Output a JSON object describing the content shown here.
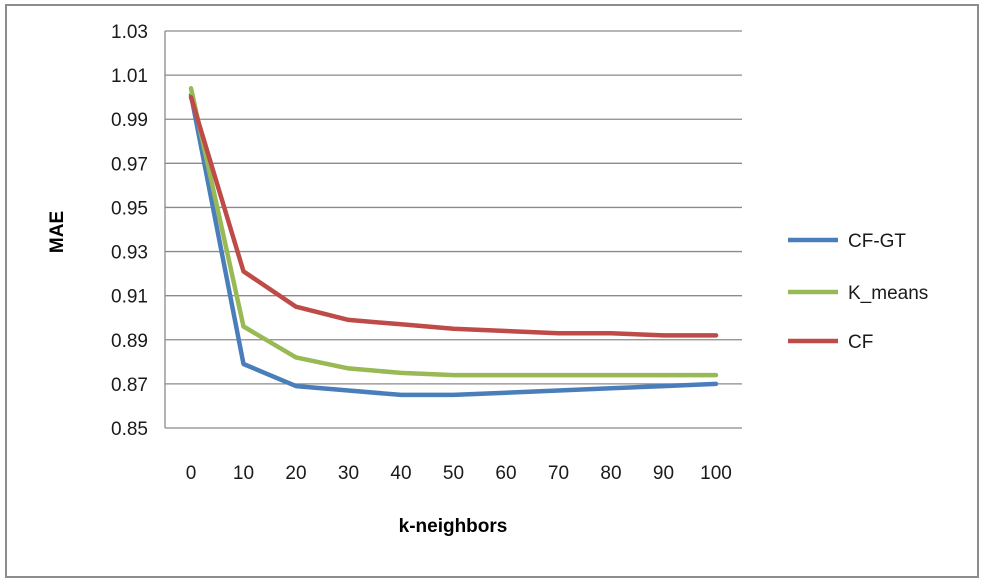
{
  "chart_data": {
    "type": "line",
    "xlabel": "k-neighbors",
    "ylabel": "MAE",
    "categories": [
      "0",
      "10",
      "20",
      "30",
      "40",
      "50",
      "60",
      "70",
      "80",
      "90",
      "100"
    ],
    "ylim": [
      0.85,
      1.03
    ],
    "yticks": [
      "1.03",
      "1.01",
      "0.99",
      "0.97",
      "0.95",
      "0.93",
      "0.91",
      "0.89",
      "0.87",
      "0.85"
    ],
    "grid": true,
    "legend_position": "right",
    "series": [
      {
        "name": "CF-GT",
        "color": "#4a7ebb",
        "values": [
          1.001,
          0.879,
          0.869,
          0.867,
          0.865,
          0.865,
          0.866,
          0.867,
          0.868,
          0.869,
          0.87
        ]
      },
      {
        "name": "K_means",
        "color": "#98b954",
        "values": [
          1.004,
          0.896,
          0.882,
          0.877,
          0.875,
          0.874,
          0.874,
          0.874,
          0.874,
          0.874,
          0.874
        ]
      },
      {
        "name": "CF",
        "color": "#be4b48",
        "values": [
          1.0,
          0.921,
          0.905,
          0.899,
          0.897,
          0.895,
          0.894,
          0.893,
          0.893,
          0.892,
          0.892
        ]
      }
    ]
  }
}
